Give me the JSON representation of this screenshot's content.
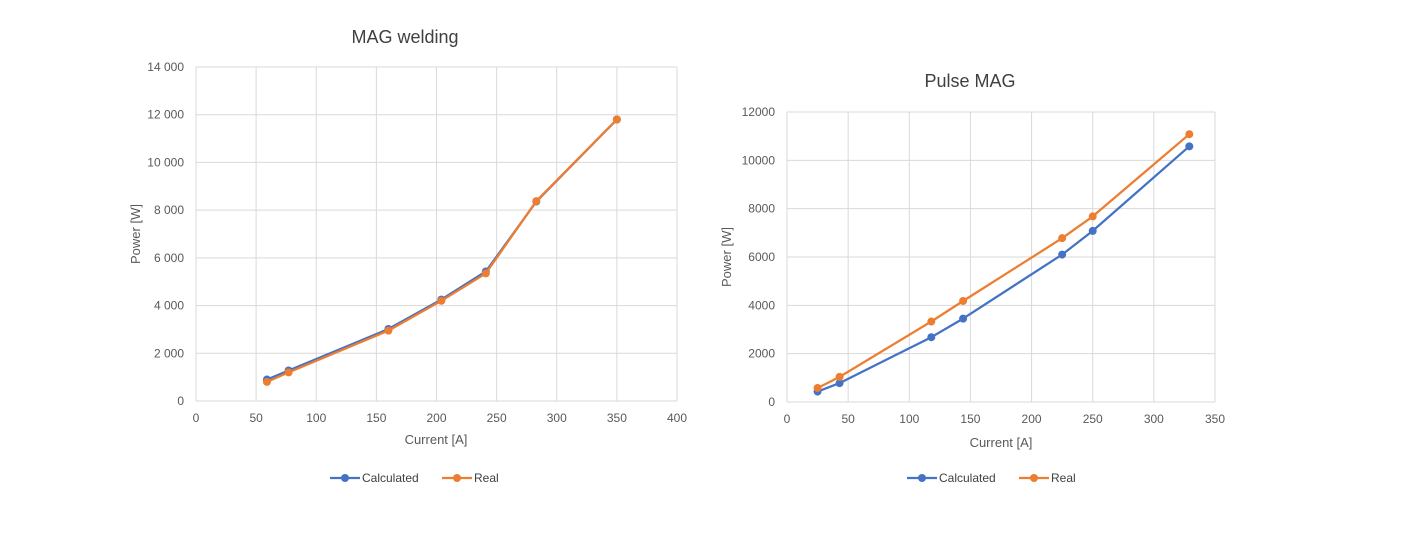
{
  "chart_data": [
    {
      "type": "line",
      "title": "MAG welding",
      "xlabel": "Current [A]",
      "ylabel": "Power [W]",
      "xlim": [
        0,
        400
      ],
      "ylim": [
        0,
        14000
      ],
      "x_ticks": [
        "0",
        "50",
        "100",
        "150",
        "200",
        "250",
        "300",
        "350",
        "400"
      ],
      "y_ticks": [
        "0",
        "2 000",
        "4 000",
        "6 000",
        "8 000",
        "10 000",
        "12 000",
        "14 000"
      ],
      "grid": true,
      "legend": "bottom",
      "series": [
        {
          "name": "Calculated",
          "color": "#4472c4",
          "x": [
            59,
            77,
            160,
            204,
            241,
            283,
            350
          ],
          "y": [
            900,
            1280,
            3020,
            4250,
            5430,
            8360,
            11800
          ]
        },
        {
          "name": "Real",
          "color": "#ed7d31",
          "x": [
            59,
            77,
            160,
            204,
            241,
            283,
            350
          ],
          "y": [
            800,
            1200,
            2950,
            4200,
            5350,
            8380,
            11800
          ]
        }
      ]
    },
    {
      "type": "line",
      "title": "Pulse MAG",
      "xlabel": "Current [A]",
      "ylabel": "Power [W]",
      "xlim": [
        0,
        350
      ],
      "ylim": [
        0,
        12000
      ],
      "x_ticks": [
        "0",
        "50",
        "100",
        "150",
        "200",
        "250",
        "300",
        "350"
      ],
      "y_ticks": [
        "0",
        "2000",
        "4000",
        "6000",
        "8000",
        "10000",
        "12000"
      ],
      "grid": true,
      "legend": "bottom",
      "series": [
        {
          "name": "Calculated",
          "color": "#4472c4",
          "x": [
            25,
            43,
            118,
            144,
            225,
            250,
            329
          ],
          "y": [
            430,
            780,
            2680,
            3450,
            6100,
            7080,
            10580
          ]
        },
        {
          "name": "Real",
          "color": "#ed7d31",
          "x": [
            25,
            43,
            118,
            144,
            225,
            250,
            329
          ],
          "y": [
            580,
            1040,
            3330,
            4180,
            6780,
            7680,
            11080
          ]
        }
      ]
    }
  ]
}
